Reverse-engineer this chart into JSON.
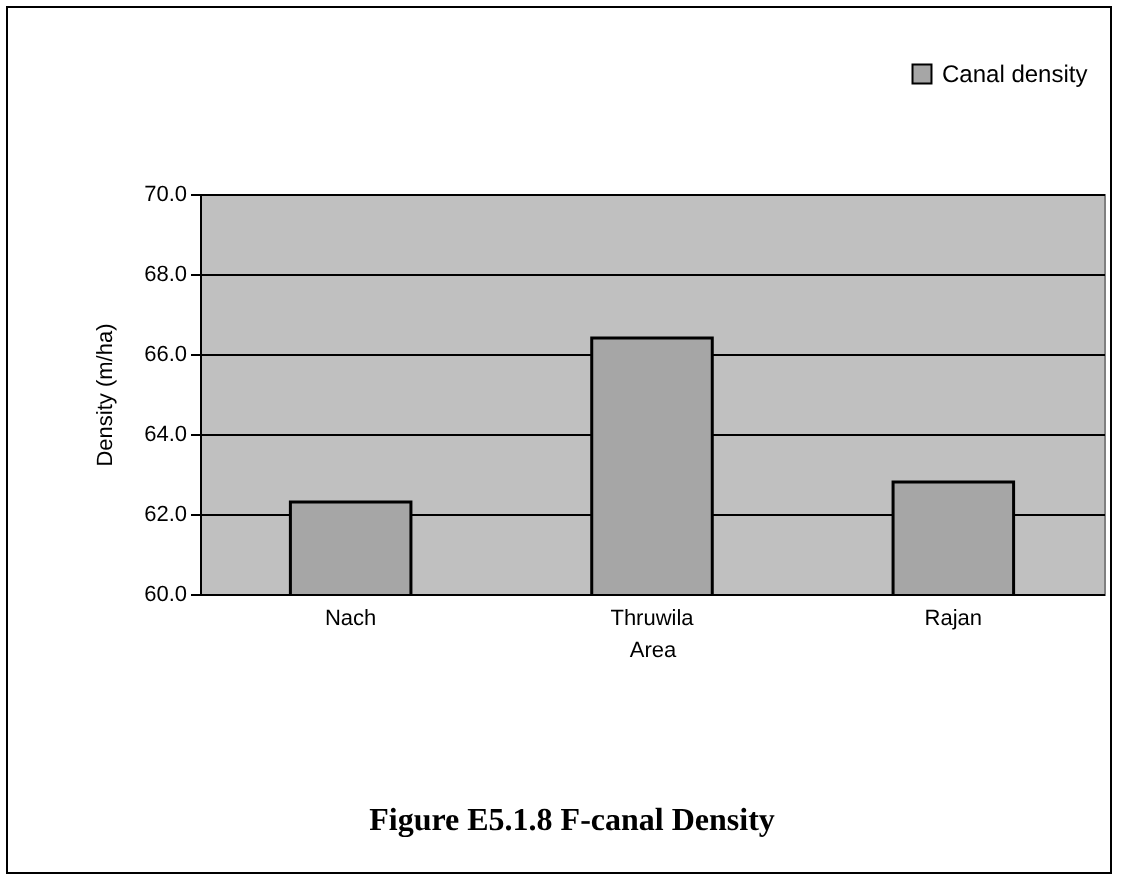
{
  "chart_data": {
    "type": "bar",
    "title": "Figure E5.1.8   F-canal Density",
    "xlabel": "Area",
    "ylabel": "Density (m/ha)",
    "categories": [
      "Nach",
      "Thruwila",
      "Rajan"
    ],
    "series": [
      {
        "name": "Canal density",
        "color": "#a6a6a6",
        "values": [
          62.3,
          66.4,
          62.8
        ]
      }
    ],
    "ylim": [
      60,
      70
    ],
    "yticks": [
      {
        "value": 60,
        "label": "60.0"
      },
      {
        "value": 62,
        "label": "62.0"
      },
      {
        "value": 64,
        "label": "64.0"
      },
      {
        "value": 66,
        "label": "66.0"
      },
      {
        "value": 68,
        "label": "68.0"
      },
      {
        "value": 70,
        "label": "70.0"
      }
    ],
    "grid": "y",
    "legend": "top right"
  }
}
